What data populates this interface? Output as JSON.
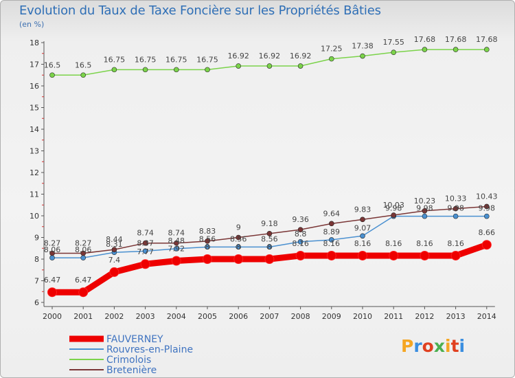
{
  "title": "Evolution du Taux de Taxe Foncière sur les Propriétés Bâties",
  "unit_label": "(en %)",
  "logo": {
    "text": "Proxiti",
    "colors": [
      "#f5a623",
      "#3a8ee0",
      "#e04020",
      "#4caf50",
      "#f5a623",
      "#e04020",
      "#3a8ee0"
    ]
  },
  "chart_data": {
    "type": "line",
    "title": "Evolution du Taux de Taxe Foncière sur les Propriétés Bâties",
    "ylabel": "(en %)",
    "xlabel": "",
    "ylim": [
      6,
      18
    ],
    "y_ticks": [
      6,
      7,
      8,
      9,
      10,
      11,
      12,
      13,
      14,
      15,
      16,
      17,
      18
    ],
    "x": [
      "2000",
      "2001",
      "2002",
      "2003",
      "2004",
      "2005",
      "2006",
      "2007",
      "2008",
      "2009",
      "2010",
      "2011",
      "2012",
      "2013",
      "2014"
    ],
    "grid": false,
    "legend_position": "bottom-left",
    "series": [
      {
        "name": "FAUVERNEY",
        "color": "#ee0000",
        "values": [
          6.47,
          6.47,
          7.4,
          7.77,
          7.92,
          8.0,
          8.0,
          8.0,
          8.16,
          8.16,
          8.16,
          8.16,
          8.16,
          8.16,
          8.66
        ],
        "labels": [
          "6.47",
          "6.47",
          "7.4",
          "7.77",
          "7.92",
          "8",
          "8",
          "8",
          "8.16",
          "8.16",
          "8.16",
          "8.16",
          "8.16",
          "8.16",
          "8.66"
        ]
      },
      {
        "name": "Rouvres-en-Plaine",
        "color": "#4a90d0",
        "values": [
          8.06,
          8.06,
          8.31,
          8.37,
          8.48,
          8.56,
          8.56,
          8.56,
          8.8,
          8.89,
          9.07,
          9.98,
          9.98,
          9.98,
          9.98
        ],
        "labels": [
          "8.06",
          "8.06",
          "8.31",
          "8.37",
          "8.48",
          "8.56",
          "8.56",
          "8.56",
          "8.8",
          "8.89",
          "9.07",
          "9.98",
          "9.98",
          "9.98",
          "9.98"
        ]
      },
      {
        "name": "Crimolois",
        "color": "#7bd34a",
        "values": [
          16.5,
          16.5,
          16.75,
          16.75,
          16.75,
          16.75,
          16.92,
          16.92,
          16.92,
          17.25,
          17.38,
          17.55,
          17.68,
          17.68,
          17.68
        ],
        "labels": [
          "16.5",
          "16.5",
          "16.75",
          "16.75",
          "16.75",
          "16.75",
          "16.92",
          "16.92",
          "16.92",
          "17.25",
          "17.38",
          "17.55",
          "17.68",
          "17.68",
          "17.68"
        ]
      },
      {
        "name": "Bretenière",
        "color": "#7a3636",
        "values": [
          8.27,
          8.27,
          8.44,
          8.74,
          8.74,
          8.83,
          9.0,
          9.18,
          9.36,
          9.64,
          9.83,
          10.03,
          10.23,
          10.33,
          10.43
        ],
        "labels": [
          "8.27",
          "8.27",
          "8.44",
          "8.74",
          "8.74",
          "8.83",
          "9",
          "9.18",
          "9.36",
          "9.64",
          "9.83",
          "10.03",
          "10.23",
          "10.33",
          "10.43"
        ]
      }
    ]
  }
}
